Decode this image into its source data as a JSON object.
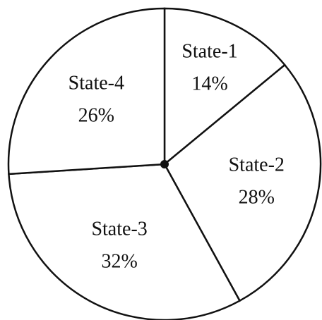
{
  "chart_data": {
    "type": "pie",
    "categories": [
      "State-1",
      "State-2",
      "State-3",
      "State-4"
    ],
    "values": [
      14,
      28,
      32,
      26
    ],
    "value_labels": [
      "14%",
      "28%",
      "32%",
      "26%"
    ],
    "color": "#ffffff"
  }
}
